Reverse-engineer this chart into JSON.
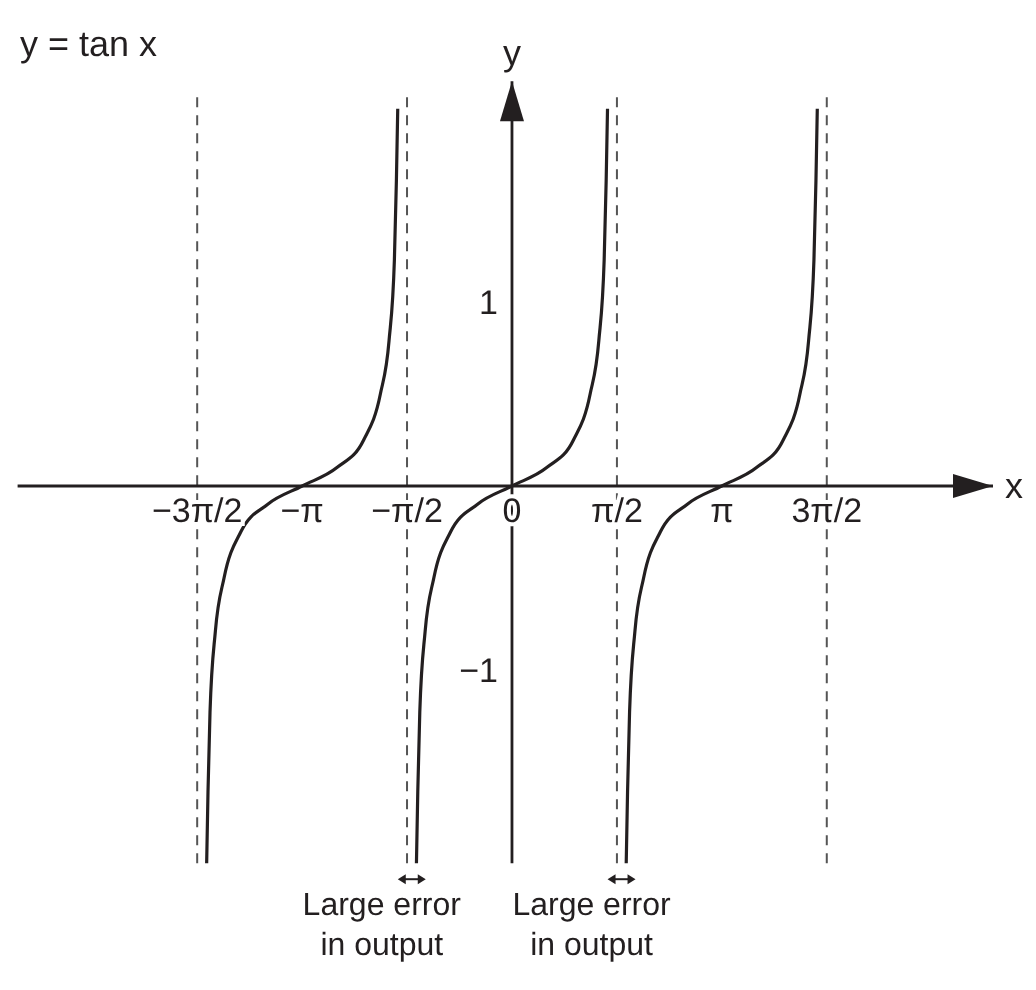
{
  "chart_data": {
    "type": "line",
    "xlabel": "x",
    "ylabel": "y",
    "annotations": [
      "y = tan x",
      {
        "text": "Large error in output",
        "x": -1.5,
        "y": -2.05
      },
      {
        "text": "Large error in output",
        "x": 1.64,
        "y": -2.05
      }
    ],
    "series": [
      {
        "color": "#231f20",
        "x": [
          -4.57,
          -4.55,
          -4.52,
          -4.44,
          -4.31,
          -4.06,
          -3.66,
          -3.14,
          -2.62,
          -2.22,
          -1.97,
          -1.84,
          -1.76,
          -1.73,
          -1.71
        ],
        "values": [
          -2.05,
          -1.66,
          -1.23,
          -0.79,
          -0.5,
          -0.25,
          -0.1,
          0,
          0.1,
          0.25,
          0.5,
          0.79,
          1.23,
          1.66,
          2.05
        ]
      },
      {
        "color": "#231f20",
        "x": [
          -1.43,
          -1.41,
          -1.38,
          -1.3,
          -1.17,
          -0.92,
          -0.52,
          0,
          0.52,
          0.92,
          1.17,
          1.3,
          1.38,
          1.41,
          1.43
        ],
        "values": [
          -2.05,
          -1.66,
          -1.23,
          -0.79,
          -0.5,
          -0.25,
          -0.1,
          0,
          0.1,
          0.25,
          0.5,
          0.79,
          1.23,
          1.66,
          2.05
        ]
      },
      {
        "color": "#231f20",
        "x": [
          1.71,
          1.73,
          1.76,
          1.84,
          1.97,
          2.22,
          2.62,
          3.14,
          3.66,
          4.06,
          4.31,
          4.44,
          4.52,
          4.55,
          4.57
        ],
        "values": [
          -2.05,
          -1.66,
          -1.23,
          -0.79,
          -0.5,
          -0.25,
          -0.1,
          0,
          0.1,
          0.25,
          0.5,
          0.79,
          1.23,
          1.66,
          2.05
        ]
      }
    ],
    "xlim": [
      -7.4,
      7.2
    ],
    "ylim": [
      -2.05,
      2.2
    ],
    "xticks": [
      {
        "value": -4.712,
        "label": "−3π/2"
      },
      {
        "value": -3.142,
        "label": "−π"
      },
      {
        "value": -1.571,
        "label": "−π/2"
      },
      0,
      {
        "value": 1.571,
        "label": "π/2"
      },
      {
        "value": 3.142,
        "label": "π"
      },
      {
        "value": 4.712,
        "label": "3π/2"
      }
    ],
    "yticks": [
      {
        "value": -1,
        "label": "−1"
      },
      1
    ],
    "ref_lines": [
      {
        "axis": "x",
        "value": -4.712,
        "line_style": "dashed"
      },
      {
        "axis": "x",
        "value": -1.571,
        "line_style": "dashed"
      },
      {
        "axis": "x",
        "value": 1.571,
        "line_style": "dashed"
      },
      {
        "axis": "x",
        "value": 4.712,
        "line_style": "dashed"
      }
    ],
    "grid": false,
    "marker": "none",
    "line_style": "solid"
  }
}
